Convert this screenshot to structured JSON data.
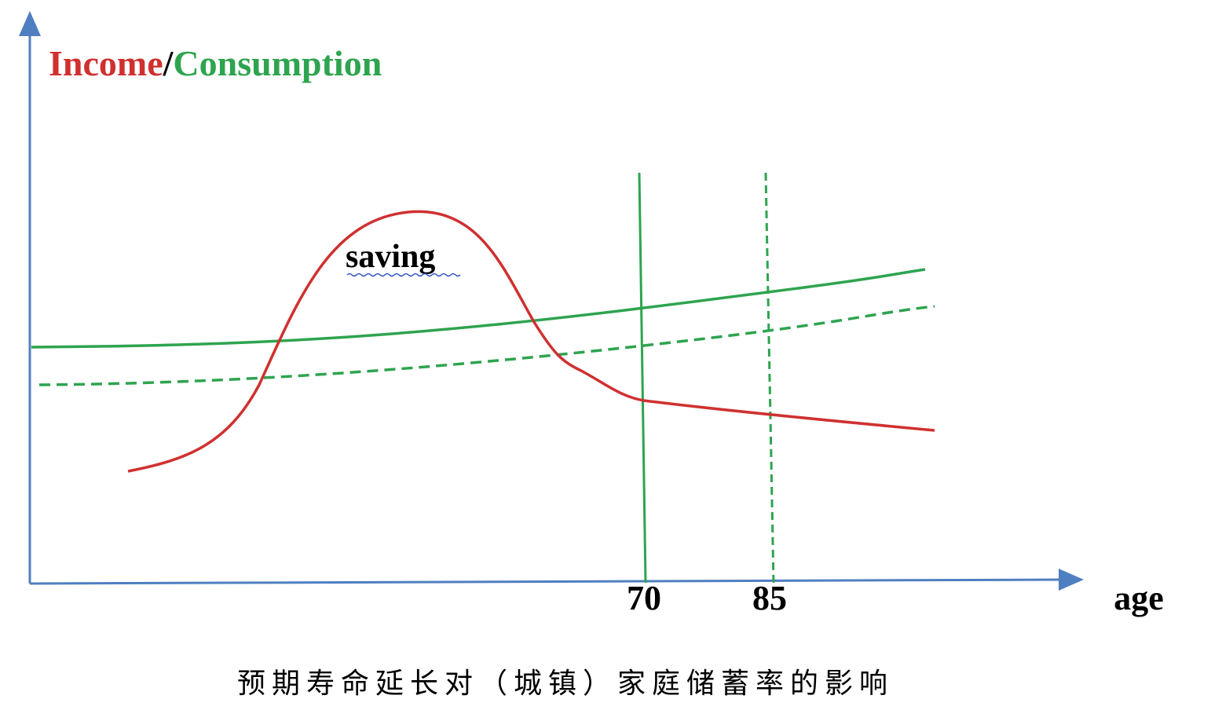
{
  "title": {
    "income": "Income",
    "slash": "/",
    "consumption": "Consumption"
  },
  "annotation": "saving",
  "x_axis": {
    "label": "age",
    "marks": [
      "70",
      "85"
    ]
  },
  "caption": "预期寿命延长对（城镇）家庭储蓄率的影响"
}
